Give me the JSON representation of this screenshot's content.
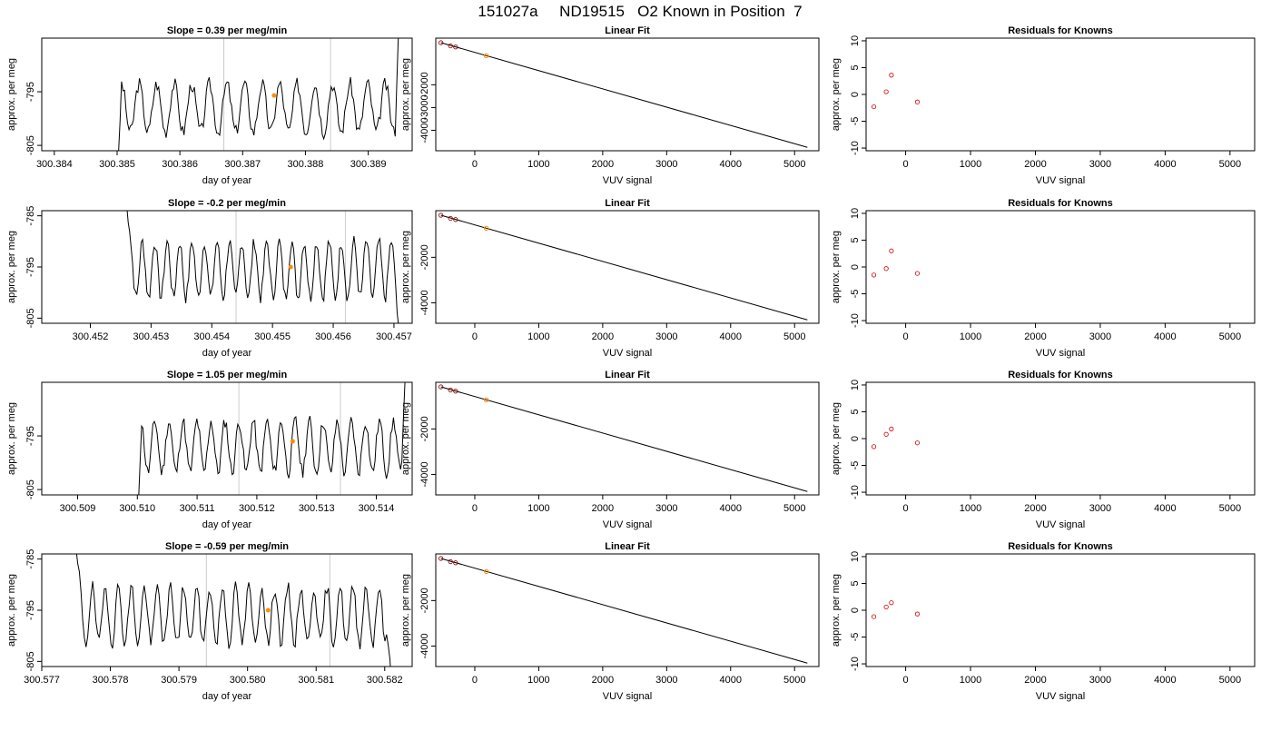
{
  "figure": {
    "title": "151027a     ND19515   O2 Known in Position  7"
  },
  "colors": {
    "line": "#000000",
    "highlight": "#ff8c00",
    "residual": "#cc0000",
    "marker_line": "#cccccc",
    "box": "#000000"
  },
  "chart_data": [
    {
      "type": "line",
      "row": 0,
      "col": 0,
      "title": "Slope =  0.39  per meg/min",
      "xlabel": "day of year",
      "ylabel": "approx. per meg",
      "xlim": [
        300.3838,
        300.3897
      ],
      "ylim": [
        -806,
        -785
      ],
      "xticks": [
        300.384,
        300.385,
        300.386,
        300.387,
        300.388,
        300.389
      ],
      "xtick_labels": [
        "300.384",
        "300.385",
        "300.386",
        "300.387",
        "300.388",
        "300.389"
      ],
      "yticks": [
        -805,
        -795
      ],
      "ytick_labels": [
        "-805",
        "-795"
      ],
      "vlines": [
        300.3867,
        300.3884
      ],
      "highlight_point": [
        300.3875,
        -795.7
      ],
      "series": {
        "x_start": 300.385,
        "x_end": 300.3895,
        "baseline": -798,
        "amp": 4.5,
        "period": 0.00028,
        "start_level": -812,
        "end_level": -780,
        "seed": 3
      }
    },
    {
      "type": "scatter",
      "row": 0,
      "col": 1,
      "title": "Linear Fit",
      "xlabel": "VUV signal",
      "ylabel": "approx. per meg",
      "xlim": [
        -610,
        5380
      ],
      "ylim": [
        -4900,
        50
      ],
      "xticks": [
        0,
        1000,
        2000,
        3000,
        4000,
        5000
      ],
      "xtick_labels": [
        "0",
        "1000",
        "2000",
        "3000",
        "4000",
        "5000"
      ],
      "yticks": [
        -4000,
        -3000,
        -2000
      ],
      "ytick_labels": [
        "-4000",
        "-3000",
        "-2000"
      ],
      "fit_line": [
        [
          -530,
          -150
        ],
        [
          5200,
          -4750
        ]
      ],
      "points": [
        [
          -530,
          -150
        ],
        [
          -380,
          -290
        ],
        [
          -300,
          -340
        ]
      ],
      "highlight_points": [
        [
          180,
          -720
        ]
      ]
    },
    {
      "type": "scatter",
      "row": 0,
      "col": 2,
      "title": "Residuals for Knowns",
      "xlabel": "VUV signal",
      "ylabel": "approx. per meg",
      "xlim": [
        -610,
        5380
      ],
      "ylim": [
        -10.5,
        10.5
      ],
      "xticks": [
        0,
        1000,
        2000,
        3000,
        4000,
        5000
      ],
      "xtick_labels": [
        "0",
        "1000",
        "2000",
        "3000",
        "4000",
        "5000"
      ],
      "yticks": [
        -10,
        -5,
        0,
        5,
        10
      ],
      "ytick_labels": [
        "-10",
        "-5",
        "0",
        "5",
        "10"
      ],
      "points": [
        [
          -490,
          -2.3
        ],
        [
          -300,
          0.5
        ],
        [
          -220,
          3.6
        ],
        [
          180,
          -1.4
        ]
      ]
    },
    {
      "type": "line",
      "row": 1,
      "col": 0,
      "title": "Slope =  -0.2  per meg/min",
      "xlabel": "day of year",
      "ylabel": "approx. per meg",
      "xlim": [
        300.4512,
        300.4573
      ],
      "ylim": [
        -806,
        -784
      ],
      "xticks": [
        300.452,
        300.453,
        300.454,
        300.455,
        300.456,
        300.457
      ],
      "xtick_labels": [
        "300.452",
        "300.453",
        "300.454",
        "300.455",
        "300.456",
        "300.457"
      ],
      "yticks": [
        -805,
        -795,
        -785
      ],
      "ytick_labels": [
        "-805",
        "-795",
        "-785"
      ],
      "vlines": [
        300.4544,
        300.4562
      ],
      "highlight_point": [
        300.4553,
        -795.0
      ],
      "series": {
        "x_start": 300.4526,
        "x_end": 300.4571,
        "baseline": -795.5,
        "amp": 5.5,
        "period": 0.000205,
        "start_level": -783,
        "end_level": -810,
        "seed": 7
      }
    },
    {
      "type": "scatter",
      "row": 1,
      "col": 1,
      "title": "Linear Fit",
      "xlabel": "VUV signal",
      "ylabel": "approx. per meg",
      "xlim": [
        -610,
        5380
      ],
      "ylim": [
        -4900,
        50
      ],
      "xticks": [
        0,
        1000,
        2000,
        3000,
        4000,
        5000
      ],
      "xtick_labels": [
        "0",
        "1000",
        "2000",
        "3000",
        "4000",
        "5000"
      ],
      "yticks": [
        -4000,
        -2000
      ],
      "ytick_labels": [
        "-4000",
        "-2000"
      ],
      "fit_line": [
        [
          -530,
          -150
        ],
        [
          5200,
          -4750
        ]
      ],
      "points": [
        [
          -530,
          -150
        ],
        [
          -380,
          -290
        ],
        [
          -300,
          -340
        ]
      ],
      "highlight_points": [
        [
          180,
          -720
        ]
      ]
    },
    {
      "type": "scatter",
      "row": 1,
      "col": 2,
      "title": "Residuals for Knowns",
      "xlabel": "VUV signal",
      "ylabel": "approx. per meg",
      "xlim": [
        -610,
        5380
      ],
      "ylim": [
        -10.5,
        10.5
      ],
      "xticks": [
        0,
        1000,
        2000,
        3000,
        4000,
        5000
      ],
      "xtick_labels": [
        "0",
        "1000",
        "2000",
        "3000",
        "4000",
        "5000"
      ],
      "yticks": [
        -10,
        -5,
        0,
        5,
        10
      ],
      "ytick_labels": [
        "-10",
        "-5",
        "0",
        "5",
        "10"
      ],
      "points": [
        [
          -490,
          -1.5
        ],
        [
          -300,
          -0.3
        ],
        [
          -220,
          3.0
        ],
        [
          180,
          -1.2
        ]
      ]
    },
    {
      "type": "line",
      "row": 2,
      "col": 0,
      "title": "Slope =  1.05  per meg/min",
      "xlabel": "day of year",
      "ylabel": "approx. per meg",
      "xlim": [
        300.5084,
        300.5146
      ],
      "ylim": [
        -806,
        -785
      ],
      "xticks": [
        300.509,
        300.51,
        300.511,
        300.512,
        300.513,
        300.514
      ],
      "xtick_labels": [
        "300.509",
        "300.510",
        "300.511",
        "300.512",
        "300.513",
        "300.514"
      ],
      "yticks": [
        -805,
        -795
      ],
      "ytick_labels": [
        "-805",
        "-795"
      ],
      "vlines": [
        300.5117,
        300.5134
      ],
      "highlight_point": [
        300.5126,
        -796.0
      ],
      "series": {
        "x_start": 300.51,
        "x_end": 300.5145,
        "baseline": -797,
        "amp": 4.8,
        "period": 0.000235,
        "start_level": -812,
        "end_level": -780,
        "seed": 11
      }
    },
    {
      "type": "scatter",
      "row": 2,
      "col": 1,
      "title": "Linear Fit",
      "xlabel": "VUV signal",
      "ylabel": "approx. per meg",
      "xlim": [
        -610,
        5380
      ],
      "ylim": [
        -4900,
        50
      ],
      "xticks": [
        0,
        1000,
        2000,
        3000,
        4000,
        5000
      ],
      "xtick_labels": [
        "0",
        "1000",
        "2000",
        "3000",
        "4000",
        "5000"
      ],
      "yticks": [
        -4000,
        -2000
      ],
      "ytick_labels": [
        "-4000",
        "-2000"
      ],
      "fit_line": [
        [
          -530,
          -150
        ],
        [
          5200,
          -4750
        ]
      ],
      "points": [
        [
          -530,
          -150
        ],
        [
          -380,
          -290
        ],
        [
          -300,
          -340
        ]
      ],
      "highlight_points": [
        [
          180,
          -720
        ]
      ]
    },
    {
      "type": "scatter",
      "row": 2,
      "col": 2,
      "title": "Residuals for Knowns",
      "xlabel": "VUV signal",
      "ylabel": "approx. per meg",
      "xlim": [
        -610,
        5380
      ],
      "ylim": [
        -10.5,
        10.5
      ],
      "xticks": [
        0,
        1000,
        2000,
        3000,
        4000,
        5000
      ],
      "xtick_labels": [
        "0",
        "1000",
        "2000",
        "3000",
        "4000",
        "5000"
      ],
      "yticks": [
        -10,
        -5,
        0,
        5,
        10
      ],
      "ytick_labels": [
        "-10",
        "-5",
        "0",
        "5",
        "10"
      ],
      "points": [
        [
          -490,
          -1.5
        ],
        [
          -300,
          0.8
        ],
        [
          -220,
          1.8
        ],
        [
          180,
          -0.8
        ]
      ]
    },
    {
      "type": "line",
      "row": 3,
      "col": 0,
      "title": "Slope =  -0.59  per meg/min",
      "xlabel": "day of year",
      "ylabel": "approx. per meg",
      "xlim": [
        300.577,
        300.5824
      ],
      "ylim": [
        -806,
        -784
      ],
      "xticks": [
        300.577,
        300.578,
        300.579,
        300.58,
        300.581,
        300.582
      ],
      "xtick_labels": [
        "300.577",
        "300.578",
        "300.579",
        "300.580",
        "300.581",
        "300.582"
      ],
      "yticks": [
        -805,
        -795,
        -785
      ],
      "ytick_labels": [
        "-805",
        "-795",
        "-785"
      ],
      "vlines": [
        300.5794,
        300.5812
      ],
      "highlight_point": [
        300.5803,
        -795.0
      ],
      "series": {
        "x_start": 300.5775,
        "x_end": 300.5821,
        "baseline": -796,
        "amp": 5.5,
        "period": 0.00019,
        "start_level": -783,
        "end_level": -810,
        "seed": 19
      }
    },
    {
      "type": "scatter",
      "row": 3,
      "col": 1,
      "title": "Linear Fit",
      "xlabel": "VUV signal",
      "ylabel": "approx. per meg",
      "xlim": [
        -610,
        5380
      ],
      "ylim": [
        -4900,
        50
      ],
      "xticks": [
        0,
        1000,
        2000,
        3000,
        4000,
        5000
      ],
      "xtick_labels": [
        "0",
        "1000",
        "2000",
        "3000",
        "4000",
        "5000"
      ],
      "yticks": [
        -4000,
        -2000
      ],
      "ytick_labels": [
        "-4000",
        "-2000"
      ],
      "fit_line": [
        [
          -530,
          -150
        ],
        [
          5200,
          -4750
        ]
      ],
      "points": [
        [
          -530,
          -150
        ],
        [
          -380,
          -290
        ],
        [
          -300,
          -340
        ]
      ],
      "highlight_points": [
        [
          180,
          -720
        ]
      ]
    },
    {
      "type": "scatter",
      "row": 3,
      "col": 2,
      "title": "Residuals for Knowns",
      "xlabel": "VUV signal",
      "ylabel": "approx. per meg",
      "xlim": [
        -610,
        5380
      ],
      "ylim": [
        -10.5,
        10.5
      ],
      "xticks": [
        0,
        1000,
        2000,
        3000,
        4000,
        5000
      ],
      "xtick_labels": [
        "0",
        "1000",
        "2000",
        "3000",
        "4000",
        "5000"
      ],
      "yticks": [
        -10,
        -5,
        0,
        5,
        10
      ],
      "ytick_labels": [
        "-10",
        "-5",
        "0",
        "5",
        "10"
      ],
      "points": [
        [
          -490,
          -1.2
        ],
        [
          -300,
          0.6
        ],
        [
          -220,
          1.4
        ],
        [
          180,
          -0.7
        ]
      ]
    }
  ]
}
